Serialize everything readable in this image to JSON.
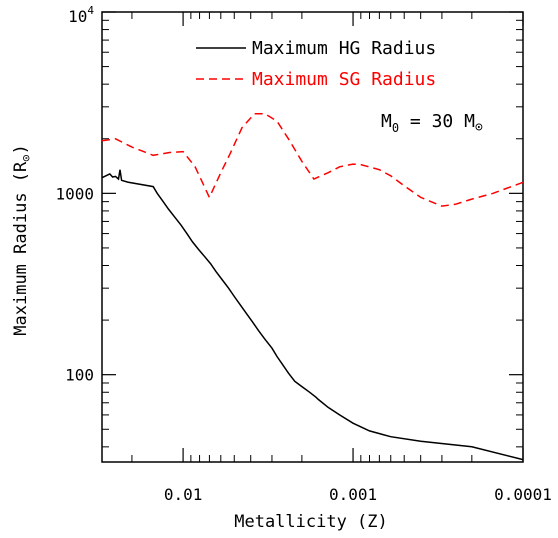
{
  "chart_data": {
    "type": "line",
    "title": "",
    "xlabel": "Metallicity (Z)",
    "ylabel": "Maximum Radius (R",
    "ylabel_symbol": "⊙",
    "ylabel_close": ")",
    "xscale": "log",
    "x_reversed": true,
    "xlim": [
      0.03,
      0.0001
    ],
    "yscale": "log",
    "ylim": [
      33,
      10000
    ],
    "x_ticks": [
      {
        "value": 0.01,
        "label": "0.01"
      },
      {
        "value": 0.001,
        "label": "0.001"
      },
      {
        "value": 0.0001,
        "label": "0.0001"
      }
    ],
    "y_ticks": [
      {
        "value": 100,
        "label": "100"
      },
      {
        "value": 1000,
        "label": "1000"
      },
      {
        "value": 10000,
        "label_base": "10",
        "label_exp": "4"
      }
    ],
    "annotation": {
      "prefix": "M",
      "sub": "0",
      "middle": " = 30 M",
      "symbol": "⊙"
    },
    "legend_position": "top-right",
    "series": [
      {
        "name": "Maximum HG Radius",
        "color": "#000000",
        "style": "solid",
        "x": [
          0.03,
          0.027,
          0.026,
          0.025,
          0.024,
          0.0235,
          0.023,
          0.021,
          0.015,
          0.0142,
          0.0132,
          0.0122,
          0.0112,
          0.0103,
          0.0095,
          0.0088,
          0.0081,
          0.0075,
          0.0069,
          0.0064,
          0.0059,
          0.0054,
          0.005,
          0.0046,
          0.0042,
          0.0039,
          0.0036,
          0.0033,
          0.003,
          0.0028,
          0.0026,
          0.0024,
          0.0022,
          0.002,
          0.0018,
          0.00165,
          0.0016,
          0.0014,
          0.0012,
          0.001,
          0.0008,
          0.0006,
          0.0004,
          0.0002,
          0.0001
        ],
        "y": [
          1220,
          1280,
          1230,
          1240,
          1200,
          1350,
          1180,
          1150,
          1090,
          1000,
          910,
          820,
          740,
          670,
          600,
          540,
          490,
          450,
          410,
          370,
          335,
          300,
          270,
          242,
          215,
          195,
          175,
          157,
          140,
          126,
          114,
          102,
          92,
          86,
          80,
          75,
          73,
          66,
          60,
          54,
          49,
          45.5,
          43,
          40,
          34
        ]
      },
      {
        "name": "Maximum SG Radius",
        "color": "#ff0000",
        "style": "dashed",
        "x": [
          0.03,
          0.025,
          0.02,
          0.015,
          0.012,
          0.01,
          0.0085,
          0.007,
          0.006,
          0.0053,
          0.0045,
          0.0038,
          0.0033,
          0.0028,
          0.0024,
          0.002,
          0.0017,
          0.0014,
          0.0012,
          0.001,
          0.0009,
          0.0007,
          0.0006,
          0.0005,
          0.0004,
          0.0003,
          0.00025,
          0.0002,
          0.00015,
          0.00012,
          0.0001
        ],
        "y": [
          1950,
          2000,
          1800,
          1620,
          1680,
          1700,
          1400,
          950,
          1300,
          1650,
          2300,
          2750,
          2750,
          2500,
          2000,
          1500,
          1200,
          1300,
          1400,
          1450,
          1440,
          1350,
          1250,
          1100,
          950,
          850,
          870,
          930,
          1000,
          1080,
          1150
        ]
      }
    ]
  }
}
